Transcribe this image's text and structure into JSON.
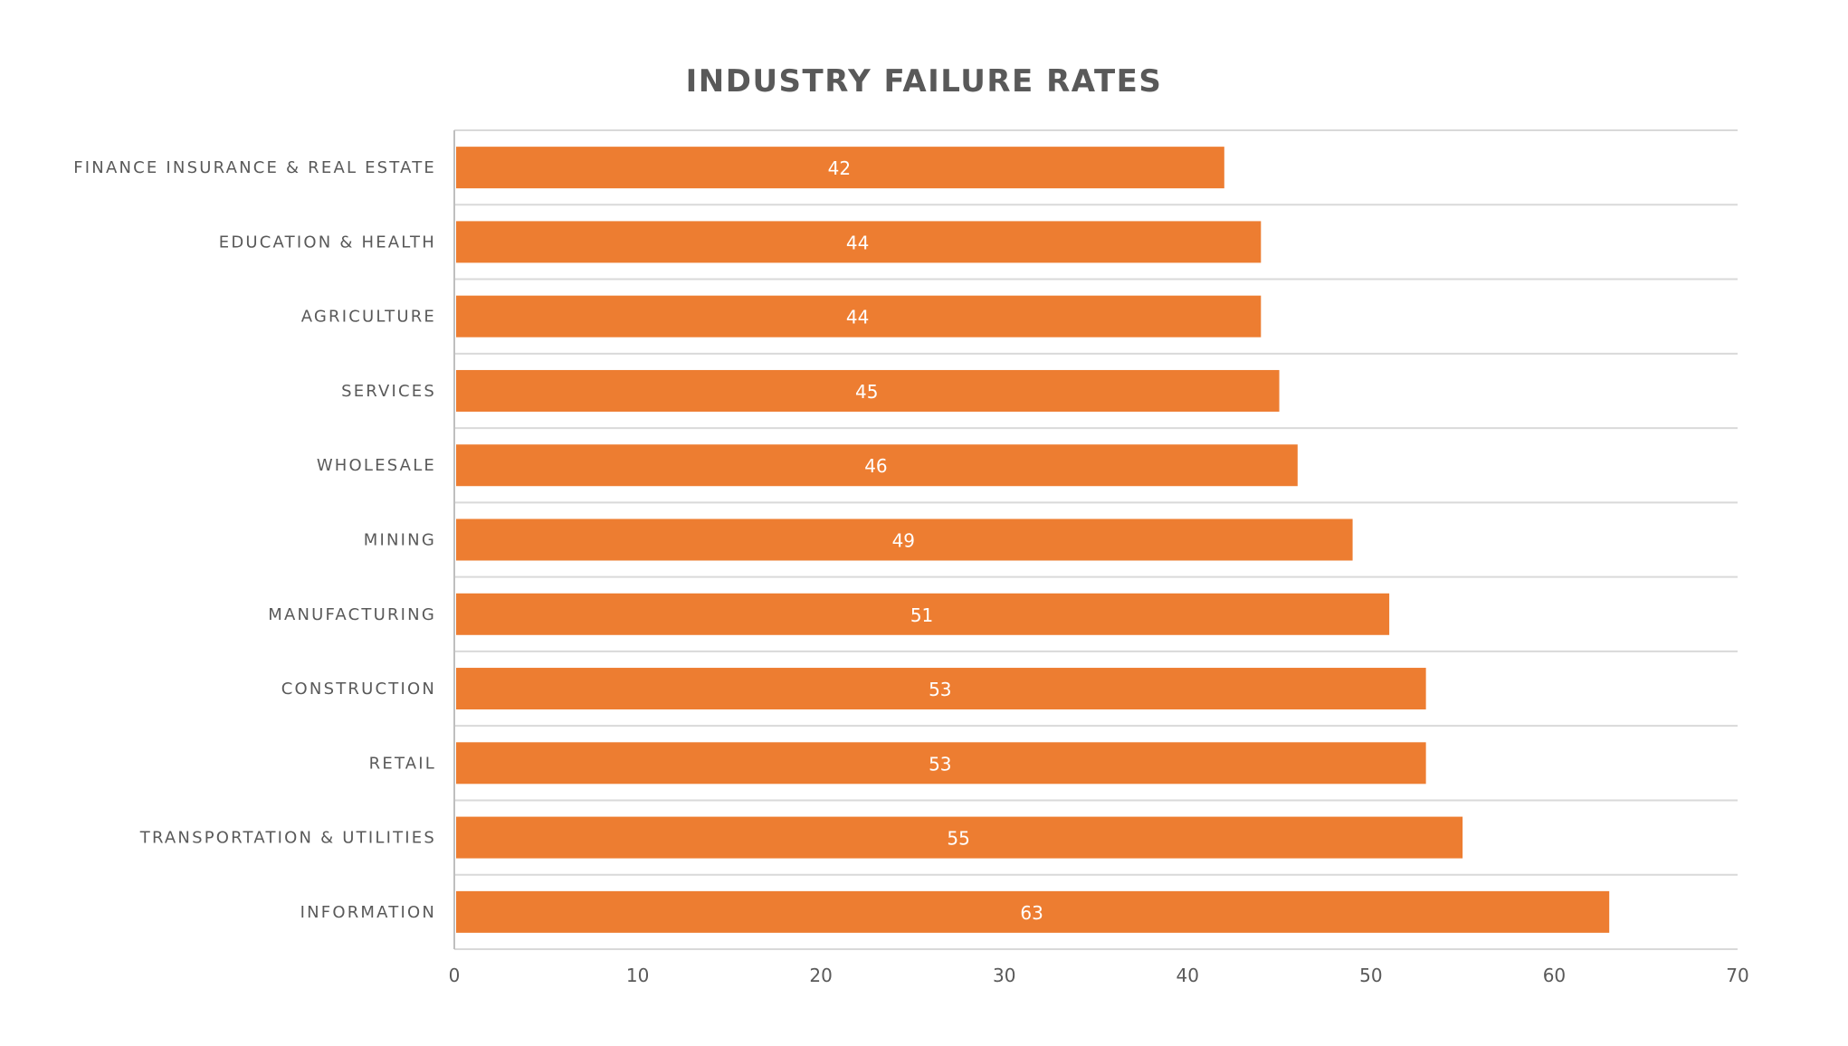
{
  "chart_data": {
    "type": "bar",
    "orientation": "horizontal",
    "title": "INDUSTRY FAILURE RATES",
    "xlabel": "",
    "ylabel": "",
    "categories": [
      "FINANCE INSURANCE & REAL ESTATE",
      "EDUCATION & HEALTH",
      "AGRICULTURE",
      "SERVICES",
      "WHOLESALE",
      "MINING",
      "MANUFACTURING",
      "CONSTRUCTION",
      "RETAIL",
      "TRANSPORTATION & UTILITIES",
      "INFORMATION"
    ],
    "values": [
      42,
      44,
      44,
      45,
      46,
      49,
      51,
      53,
      53,
      55,
      63
    ],
    "data_labels": [
      "42",
      "44",
      "44",
      "45",
      "46",
      "49",
      "51",
      "53",
      "53",
      "55",
      "63"
    ],
    "xlim": [
      0,
      70
    ],
    "x_ticks": [
      0,
      10,
      20,
      30,
      40,
      50,
      60,
      70
    ],
    "x_tick_labels": [
      "0",
      "10",
      "20",
      "30",
      "40",
      "50",
      "60",
      "70"
    ],
    "grid": "horizontal category separators",
    "legend": "none",
    "colors": {
      "bar": "#ED7D31",
      "title": "#595959",
      "category_label": "#595959",
      "tick_label": "#595959",
      "data_label": "#FFFFFF",
      "grid": "#D9D9D9",
      "axis": "#BFBFBF"
    }
  }
}
